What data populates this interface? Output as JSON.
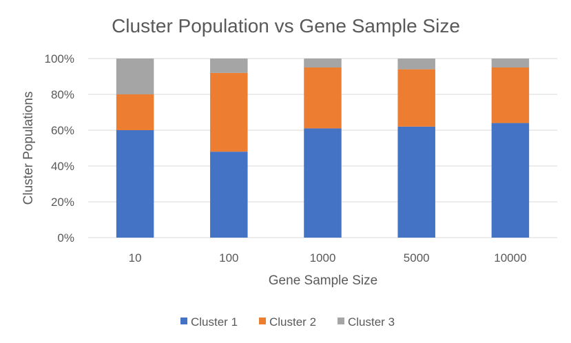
{
  "chart_data": {
    "type": "bar",
    "stacked": true,
    "percent": true,
    "title": "Cluster Population vs Gene Sample Size",
    "xlabel": "Gene Sample Size",
    "ylabel": "Cluster Populations",
    "categories": [
      "10",
      "100",
      "1000",
      "5000",
      "10000"
    ],
    "series": [
      {
        "name": "Cluster 1",
        "color": "#4472C4",
        "values": [
          60,
          48,
          61,
          62,
          64
        ]
      },
      {
        "name": "Cluster 2",
        "color": "#ED7D31",
        "values": [
          20,
          44,
          34,
          32,
          31
        ]
      },
      {
        "name": "Cluster 3",
        "color": "#A5A5A5",
        "values": [
          20,
          8,
          5,
          6,
          5
        ]
      }
    ],
    "ylim": [
      0,
      100
    ],
    "yticks": [
      "0%",
      "20%",
      "40%",
      "60%",
      "80%",
      "100%"
    ],
    "grid": true,
    "legend_position": "bottom"
  }
}
